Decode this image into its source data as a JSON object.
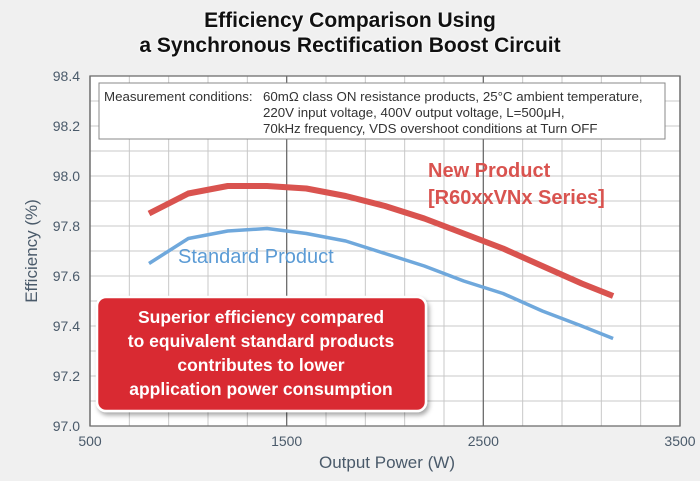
{
  "chart_data": {
    "type": "line",
    "title": "Efficiency Comparison Using a Synchronous Rectification Boost Circuit",
    "title_lines": [
      "Efficiency Comparison Using",
      "a Synchronous Rectification Boost Circuit"
    ],
    "xlabel": "Output Power (W)",
    "ylabel": "Efficiency (%)",
    "xlim": [
      500,
      3500
    ],
    "ylim": [
      97.0,
      98.4
    ],
    "x_ticks": [
      500,
      1500,
      2500,
      3500
    ],
    "x_tick_labels": [
      "500",
      "1500",
      "2500",
      "3500"
    ],
    "y_ticks": [
      97.0,
      97.2,
      97.4,
      97.6,
      97.8,
      98.0,
      98.2,
      98.4
    ],
    "y_tick_labels": [
      "97.0",
      "97.2",
      "97.4",
      "97.6",
      "97.8",
      "98.0",
      "98.2",
      "98.4"
    ],
    "grid": true,
    "series": [
      {
        "name": "New Product [R60xxVNx Series]",
        "label_lines": [
          "New Product",
          "[R60xxVNx Series]"
        ],
        "color": "#d9534f",
        "x": [
          800,
          1000,
          1200,
          1400,
          1600,
          1800,
          2000,
          2200,
          2400,
          2600,
          2800,
          3000,
          3160
        ],
        "y": [
          97.85,
          97.93,
          97.96,
          97.96,
          97.95,
          97.92,
          97.88,
          97.83,
          97.77,
          97.71,
          97.64,
          97.57,
          97.52
        ]
      },
      {
        "name": "Standard Product",
        "color": "#6fa8dc",
        "x": [
          800,
          1000,
          1200,
          1400,
          1600,
          1800,
          2000,
          2200,
          2400,
          2600,
          2800,
          3000,
          3160
        ],
        "y": [
          97.65,
          97.75,
          97.78,
          97.79,
          97.77,
          97.74,
          97.69,
          97.64,
          97.58,
          97.53,
          97.46,
          97.4,
          97.35
        ]
      }
    ],
    "conditions": {
      "label": "Measurement conditions:",
      "lines": [
        "60mΩ class ON resistance products, 25°C ambient temperature,",
        "220V input voltage, 400V output voltage, L=500μH,",
        "70kHz frequency, VDS overshoot conditions at Turn OFF"
      ]
    },
    "callout": {
      "lines": [
        "Superior efficiency compared",
        "to equivalent standard products",
        "contributes to lower",
        "application power consumption"
      ]
    }
  },
  "colors": {
    "background": "#f0f0f0",
    "plot_background": "#ffffff",
    "grid": "#c8c8c8",
    "axis_text": "#4a5a6a",
    "callout_fill": "#d92b32",
    "new_product_label": "#d9534f",
    "standard_product_label": "#5b9bd5"
  }
}
